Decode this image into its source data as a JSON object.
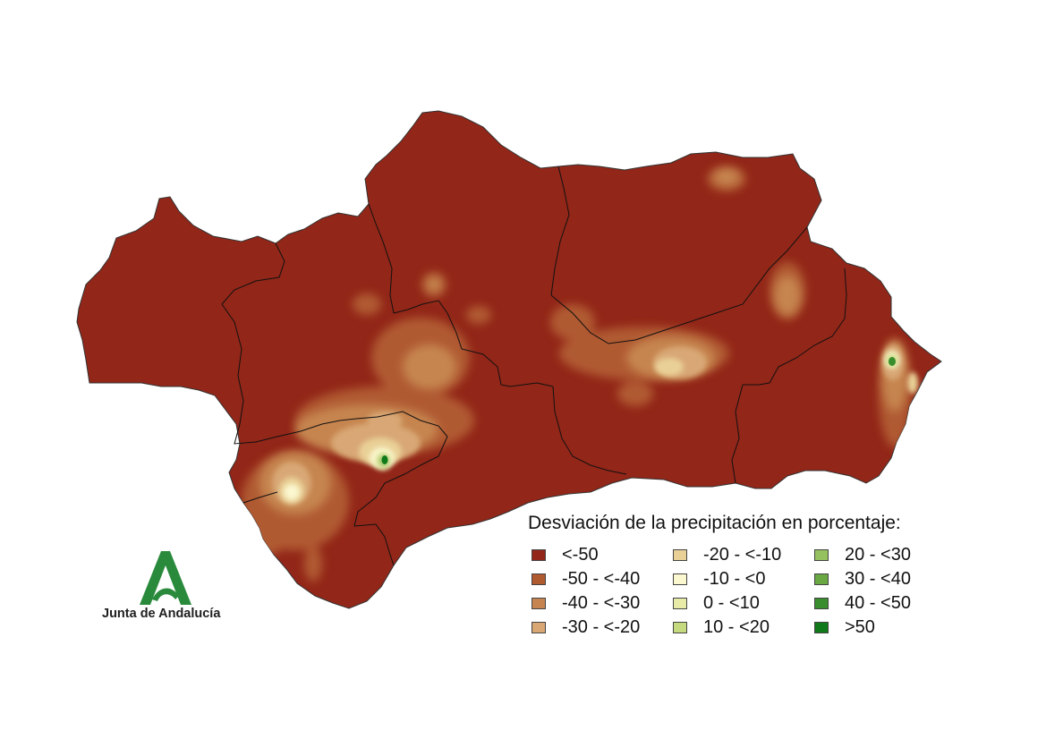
{
  "legend": {
    "title": "Desviación de la precipitación en porcentaje:",
    "items": [
      {
        "label": "<-50",
        "color": "#922618"
      },
      {
        "label": "-50 - <-40",
        "color": "#b05a30"
      },
      {
        "label": "-40 - <-30",
        "color": "#c68550"
      },
      {
        "label": "-30 - <-20",
        "color": "#d8a774"
      },
      {
        "label": "-20 - <-10",
        "color": "#e9d096"
      },
      {
        "label": "-10 - <0",
        "color": "#fbf7cf"
      },
      {
        "label": "0 - <10",
        "color": "#e8eaa8"
      },
      {
        "label": "10 - <20",
        "color": "#c5d97e"
      },
      {
        "label": "20 - <30",
        "color": "#95c15e"
      },
      {
        "label": "30 - <40",
        "color": "#6aa844"
      },
      {
        "label": "40 - <50",
        "color": "#3a8d2c"
      },
      {
        "label": ">50",
        "color": "#107a1a"
      }
    ]
  },
  "logo": {
    "text": "Junta de Andalucía",
    "color": "#2a8a3c"
  },
  "map": {
    "base_color": "#922618",
    "border_color": "#111111"
  }
}
